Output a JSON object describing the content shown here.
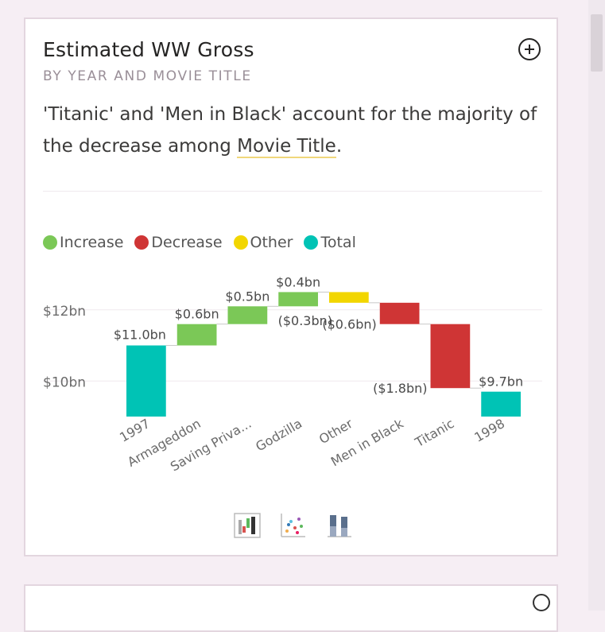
{
  "card": {
    "title": "Estimated WW Gross",
    "subtitle": "BY YEAR AND MOVIE TITLE",
    "insight_before": "'Titanic' and 'Men in Black' account for the majority of the decrease among ",
    "insight_link": "Movie Title",
    "insight_after": "."
  },
  "legend": [
    {
      "label": "Increase",
      "color": "#7bc857"
    },
    {
      "label": "Decrease",
      "color": "#cf3535"
    },
    {
      "label": "Other",
      "color": "#f2d600"
    },
    {
      "label": "Total",
      "color": "#00c3b5"
    }
  ],
  "chart_data": {
    "type": "waterfall",
    "categories": [
      "1997",
      "Armageddon",
      "Saving Priva...",
      "Godzilla",
      "Other",
      "Men in Black",
      "Titanic",
      "1998"
    ],
    "values": [
      11.0,
      0.6,
      0.5,
      0.4,
      -0.3,
      -0.6,
      -1.8,
      9.7
    ],
    "kinds": [
      "total",
      "increase",
      "increase",
      "increase",
      "other",
      "decrease",
      "decrease",
      "total"
    ],
    "data_labels": [
      "$11.0bn",
      "$0.6bn",
      "$0.5bn",
      "$0.4bn",
      "($0.3bn)",
      "($0.6bn)",
      "($1.8bn)",
      "$9.7bn"
    ],
    "y_ticks": [
      10,
      12
    ],
    "y_tick_labels": [
      "$10bn",
      "$12bn"
    ],
    "ylim": [
      9,
      12.8
    ],
    "legend_position": "top-left"
  },
  "viz_options": [
    "waterfall-chart-icon",
    "scatter-chart-icon",
    "column-chart-icon"
  ]
}
